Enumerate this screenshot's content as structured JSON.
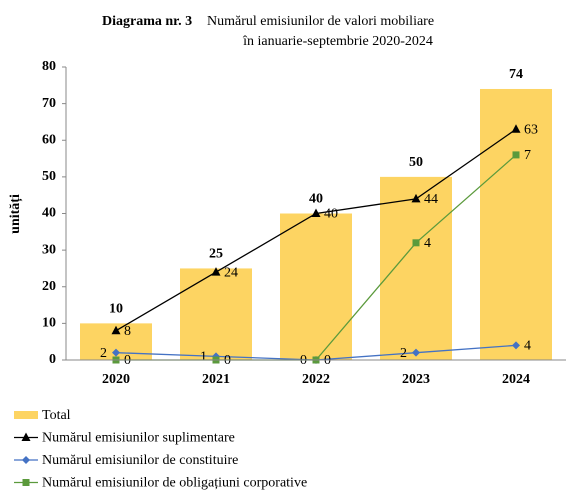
{
  "chart_data": {
    "type": "bar-line",
    "title": "Diagrama nr. 3",
    "subtitle_lines": [
      "Numărul emisiunilor de valori mobiliare",
      "în ianuarie-septembrie 2020-2024"
    ],
    "ylabel": "unități",
    "categories": [
      "2020",
      "2021",
      "2022",
      "2023",
      "2024"
    ],
    "ylim": [
      0,
      80
    ],
    "yticks": [
      0,
      10,
      20,
      30,
      40,
      50,
      60,
      70,
      80
    ],
    "y2lim": [
      0,
      10
    ],
    "series": [
      {
        "name": "Total",
        "type": "bar",
        "color": "#fdd462",
        "label_color": "#c55a11",
        "values": [
          10,
          25,
          40,
          50,
          74
        ]
      },
      {
        "name": "Numărul emisiunilor suplimentare",
        "type": "line",
        "color": "#000000",
        "marker": "triangle",
        "values": [
          8,
          24,
          40,
          44,
          63
        ]
      },
      {
        "name": "Numărul emisiunilor de constituire",
        "type": "line",
        "color": "#4472c4",
        "label_color": "#5a7fb0",
        "marker": "diamond",
        "values": [
          2,
          1,
          0,
          2,
          4
        ]
      },
      {
        "name": "Numărul emisiunilor de obligațiuni corporative",
        "type": "line",
        "axis": "y2",
        "color": "#5b9a3c",
        "label_color": "#5b9a3c",
        "marker": "square",
        "values": [
          0,
          0,
          0,
          4,
          7
        ]
      }
    ],
    "legend": "bottom"
  }
}
